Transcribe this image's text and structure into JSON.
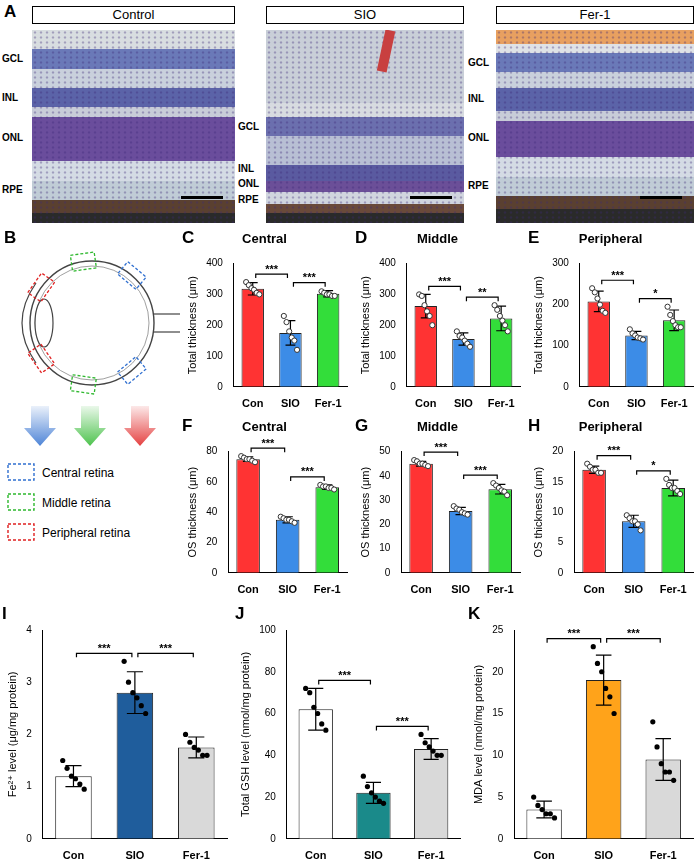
{
  "figure_panels": [
    {
      "panel_label": "A",
      "images": [
        {
          "title": "Control",
          "layers": [
            "GCL",
            "INL",
            "ONL",
            "RPE"
          ]
        },
        {
          "title": "SIO",
          "layers": [
            "GCL",
            "INL",
            "ONL",
            "RPE"
          ]
        },
        {
          "title": "Fer-1",
          "layers": [
            "GCL",
            "INL",
            "ONL",
            "RPE"
          ]
        }
      ]
    },
    {
      "panel_label": "B",
      "regions": [
        {
          "name": "Central retina",
          "color": "#2f6fd0"
        },
        {
          "name": "Middle retina",
          "color": "#2eb82e"
        },
        {
          "name": "Peripheral retina",
          "color": "#e02020"
        }
      ]
    }
  ],
  "chart_data": [
    {
      "panel_label": "C",
      "type": "bar",
      "title": "Central",
      "y_label": "Total thickness (μm)",
      "categories": [
        "Con",
        "SIO",
        "Fer-1"
      ],
      "values": [
        318,
        175,
        302
      ],
      "errors": [
        20,
        40,
        10
      ],
      "points": [
        [
          340,
          330,
          320,
          315,
          305,
          300
        ],
        [
          230,
          210,
          180,
          160,
          150,
          120
        ],
        [
          310,
          305,
          300,
          300,
          295,
          295
        ]
      ],
      "colors": [
        "#ff3333",
        "#3c8ce7",
        "#33dd3a"
      ],
      "marker": "open_circle",
      "ylim": [
        0,
        400
      ],
      "yticks": [
        0,
        100,
        200,
        300,
        400
      ],
      "grid": false,
      "significance": [
        {
          "between": [
            0,
            1
          ],
          "label": "***"
        },
        {
          "between": [
            1,
            2
          ],
          "label": "***"
        }
      ]
    },
    {
      "panel_label": "D",
      "type": "bar",
      "title": "Middle",
      "y_label": "Total thickness (μm)",
      "categories": [
        "Con",
        "SIO",
        "Fer-1"
      ],
      "values": [
        262,
        155,
        222
      ],
      "errors": [
        38,
        20,
        40
      ],
      "points": [
        [
          300,
          295,
          265,
          245,
          230,
          200
        ],
        [
          180,
          165,
          160,
          150,
          140,
          130
        ],
        [
          265,
          250,
          230,
          215,
          200,
          180
        ]
      ],
      "colors": [
        "#ff3333",
        "#3c8ce7",
        "#33dd3a"
      ],
      "marker": "open_circle",
      "ylim": [
        0,
        400
      ],
      "yticks": [
        0,
        100,
        200,
        300,
        400
      ],
      "grid": false,
      "significance": [
        {
          "between": [
            0,
            1
          ],
          "label": "***"
        },
        {
          "between": [
            1,
            2
          ],
          "label": "**"
        }
      ]
    },
    {
      "panel_label": "E",
      "type": "bar",
      "title": "Peripheral",
      "y_label": "Total thickness (μm)",
      "categories": [
        "Con",
        "SIO",
        "Fer-1"
      ],
      "values": [
        208,
        125,
        162
      ],
      "errors": [
        25,
        10,
        25
      ],
      "points": [
        [
          240,
          230,
          215,
          200,
          185,
          180
        ],
        [
          140,
          130,
          125,
          120,
          118,
          115
        ],
        [
          195,
          175,
          160,
          150,
          145,
          145
        ]
      ],
      "colors": [
        "#ff3333",
        "#3c8ce7",
        "#33dd3a"
      ],
      "marker": "open_circle",
      "ylim": [
        0,
        300
      ],
      "yticks": [
        0,
        100,
        200,
        300
      ],
      "grid": false,
      "significance": [
        {
          "between": [
            0,
            1
          ],
          "label": "***"
        },
        {
          "between": [
            1,
            2
          ],
          "label": "*"
        }
      ]
    },
    {
      "panel_label": "F",
      "type": "bar",
      "title": "Central",
      "y_label": "OS thickness (μm)",
      "categories": [
        "Con",
        "SIO",
        "Fer-1"
      ],
      "values": [
        75,
        35,
        56.5
      ],
      "errors": [
        1.5,
        2,
        1.5
      ],
      "points": [
        [
          77,
          76,
          75,
          75,
          74,
          73
        ],
        [
          37,
          36,
          35,
          35,
          34,
          33
        ],
        [
          58,
          57,
          57,
          56,
          56,
          55
        ]
      ],
      "colors": [
        "#ff3333",
        "#3c8ce7",
        "#33dd3a"
      ],
      "marker": "open_circle",
      "ylim": [
        0,
        80
      ],
      "yticks": [
        0,
        20,
        40,
        60,
        80
      ],
      "grid": false,
      "significance": [
        {
          "between": [
            0,
            1
          ],
          "label": "***"
        },
        {
          "between": [
            1,
            2
          ],
          "label": "***"
        }
      ]
    },
    {
      "panel_label": "G",
      "type": "bar",
      "title": "Middle",
      "y_label": "OS thickness (μm)",
      "categories": [
        "Con",
        "SIO",
        "Fer-1"
      ],
      "values": [
        45,
        25.5,
        34.5
      ],
      "errors": [
        1,
        1.5,
        2
      ],
      "points": [
        [
          46.5,
          46,
          45,
          45,
          44.5,
          44
        ],
        [
          27.5,
          26.5,
          26,
          25,
          24.5,
          24
        ],
        [
          37,
          36,
          35,
          34,
          33.5,
          32
        ]
      ],
      "colors": [
        "#ff3333",
        "#3c8ce7",
        "#33dd3a"
      ],
      "marker": "open_circle",
      "ylim": [
        0,
        50
      ],
      "yticks": [
        0,
        10,
        20,
        30,
        40,
        50
      ],
      "grid": false,
      "significance": [
        {
          "between": [
            0,
            1
          ],
          "label": "***"
        },
        {
          "between": [
            1,
            2
          ],
          "label": "***"
        }
      ]
    },
    {
      "panel_label": "H",
      "type": "bar",
      "title": "Peripheral",
      "y_label": "OS thickness (μm)",
      "categories": [
        "Con",
        "SIO",
        "Fer-1"
      ],
      "values": [
        17,
        8.5,
        14
      ],
      "errors": [
        0.6,
        1,
        1.3
      ],
      "points": [
        [
          18,
          17.5,
          17,
          17,
          16.5,
          16.5
        ],
        [
          9.5,
          9,
          8.5,
          8.5,
          8,
          7
        ],
        [
          15.5,
          14.5,
          14,
          14,
          13.5,
          13
        ]
      ],
      "colors": [
        "#ff3333",
        "#3c8ce7",
        "#33dd3a"
      ],
      "marker": "open_circle",
      "ylim": [
        0,
        20
      ],
      "yticks": [
        0,
        5,
        10,
        15,
        20
      ],
      "grid": false,
      "significance": [
        {
          "between": [
            0,
            1
          ],
          "label": "***"
        },
        {
          "between": [
            1,
            2
          ],
          "label": "*"
        }
      ]
    },
    {
      "panel_label": "I",
      "type": "bar",
      "y_label": "Fe²⁺ level (μg/mg protein)",
      "categories": [
        "Con",
        "SIO",
        "Fer-1"
      ],
      "values": [
        1.2,
        2.8,
        1.75
      ],
      "errors": [
        0.2,
        0.4,
        0.2
      ],
      "points": [
        [
          1.5,
          1.35,
          1.2,
          1.15,
          1.05,
          0.95
        ],
        [
          3.4,
          3.0,
          2.8,
          2.7,
          2.55,
          2.4
        ],
        [
          2.0,
          1.85,
          1.75,
          1.7,
          1.6,
          1.6
        ]
      ],
      "colors": [
        "#ffffff",
        "#1f5d9c",
        "#d9d9d9"
      ],
      "marker": "filled_circle",
      "ylim": [
        0,
        4
      ],
      "yticks": [
        0,
        1,
        2,
        3,
        4
      ],
      "grid": false,
      "significance": [
        {
          "between": [
            0,
            1
          ],
          "label": "***"
        },
        {
          "between": [
            1,
            2
          ],
          "label": "***"
        }
      ]
    },
    {
      "panel_label": "J",
      "type": "bar",
      "y_label": "Total GSH level (nmol/mg protein)",
      "categories": [
        "Con",
        "SIO",
        "Fer-1"
      ],
      "values": [
        62,
        22,
        43
      ],
      "errors": [
        10,
        5,
        5
      ],
      "points": [
        [
          72,
          70,
          63,
          60,
          55,
          52
        ],
        [
          30,
          25,
          22,
          20,
          18,
          17
        ],
        [
          50,
          46,
          44,
          42,
          40,
          40
        ]
      ],
      "colors": [
        "#ffffff",
        "#1a8a8a",
        "#d9d9d9"
      ],
      "marker": "filled_circle",
      "ylim": [
        0,
        100
      ],
      "yticks": [
        0,
        20,
        40,
        60,
        80,
        100
      ],
      "grid": false,
      "significance": [
        {
          "between": [
            0,
            1
          ],
          "label": "***"
        },
        {
          "between": [
            1,
            2
          ],
          "label": "***"
        }
      ]
    },
    {
      "panel_label": "K",
      "type": "bar",
      "y_label": "MDA level (nmol/mg protein)",
      "categories": [
        "Con",
        "SIO",
        "Fer-1"
      ],
      "values": [
        3.5,
        19,
        9.5
      ],
      "errors": [
        1,
        3,
        2.5
      ],
      "points": [
        [
          5,
          4,
          3.5,
          3,
          3,
          2.5
        ],
        [
          23,
          21,
          20,
          18,
          17,
          15
        ],
        [
          14,
          11,
          9,
          8,
          8,
          7
        ]
      ],
      "colors": [
        "#ffffff",
        "#ffa31a",
        "#d9d9d9"
      ],
      "marker": "filled_circle",
      "ylim": [
        0,
        25
      ],
      "yticks": [
        0,
        5,
        10,
        15,
        20,
        25
      ],
      "grid": false,
      "significance": [
        {
          "between": [
            0,
            1
          ],
          "label": "***"
        },
        {
          "between": [
            1,
            2
          ],
          "label": "***"
        }
      ]
    }
  ]
}
